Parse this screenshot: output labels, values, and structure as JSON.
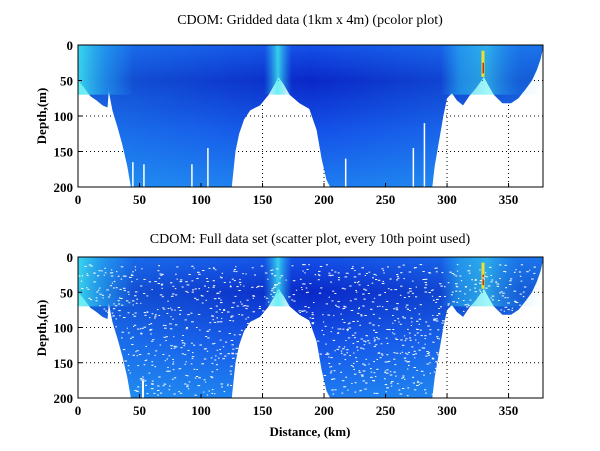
{
  "chart_data": [
    {
      "type": "heatmap",
      "title": "CDOM: Gridded data (1km x 4m) (pcolor plot)",
      "xlabel": "",
      "ylabel": "Depth,(m)",
      "xlim": [
        0,
        378
      ],
      "ylim": [
        0,
        200
      ],
      "y_reversed": true,
      "grid": true,
      "xticks": [
        0,
        50,
        100,
        150,
        200,
        250,
        300,
        350
      ],
      "yticks": [
        0,
        50,
        100,
        150,
        200
      ],
      "colormap": [
        "#0a28c8",
        "#1450e8",
        "#1e7cf0",
        "#28b4f0",
        "#40f0f0",
        "#f0e030",
        "#c03010"
      ],
      "data_max_depth_profile": {
        "distance_km": [
          0,
          5,
          10,
          15,
          20,
          24,
          25,
          28,
          32,
          36,
          40,
          43,
          125,
          128,
          131,
          135,
          140,
          148,
          155,
          160,
          163,
          167,
          172,
          180,
          188,
          194,
          198,
          202,
          205,
          288,
          290,
          293,
          297,
          300,
          304,
          308,
          313,
          318,
          323,
          328,
          330,
          333,
          338,
          345,
          352,
          358,
          364,
          369,
          373,
          376,
          378
        ],
        "depth_m": [
          50,
          60,
          72,
          78,
          85,
          88,
          65,
          92,
          115,
          140,
          170,
          200,
          200,
          150,
          125,
          105,
          92,
          85,
          70,
          55,
          45,
          55,
          70,
          82,
          90,
          120,
          160,
          190,
          200,
          200,
          170,
          140,
          100,
          75,
          68,
          78,
          85,
          72,
          62,
          50,
          45,
          55,
          70,
          82,
          82,
          75,
          62,
          50,
          35,
          20,
          5
        ]
      }
    },
    {
      "type": "scatter",
      "title": "CDOM: Full data set (scatter plot, every 10th point used)",
      "xlabel": "Distance, (km)",
      "ylabel": "Depth,(m)",
      "xlim": [
        0,
        378
      ],
      "ylim": [
        0,
        200
      ],
      "y_reversed": true,
      "grid": true,
      "xticks": [
        0,
        50,
        100,
        150,
        200,
        250,
        300,
        350
      ],
      "yticks": [
        0,
        50,
        100,
        150,
        200
      ]
    }
  ]
}
